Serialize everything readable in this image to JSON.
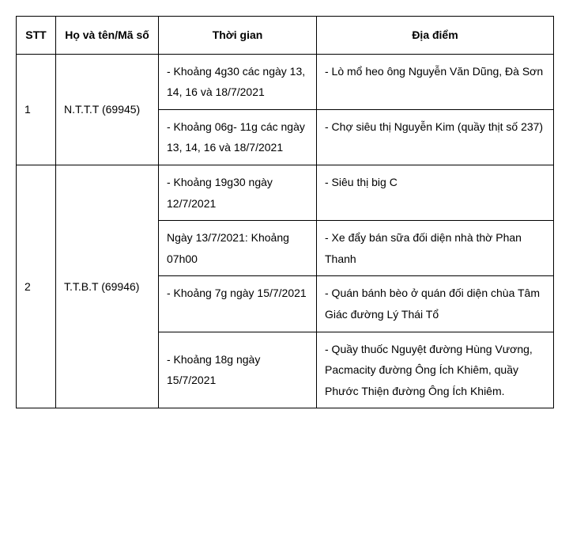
{
  "headers": {
    "stt": "STT",
    "name": "Họ và tên/Mã số",
    "time": "Thời gian",
    "place": "Địa điểm"
  },
  "rows": [
    {
      "stt": "1",
      "name": "N.T.T.T (69945)",
      "entries": [
        {
          "time": "- Khoảng 4g30 các ngày 13, 14, 16 và 18/7/2021",
          "place": "-  Lò mổ heo ông Nguyễn Văn Dũng, Đà Sơn"
        },
        {
          "time": "- Khoảng 06g- 11g các ngày 13, 14, 16 và 18/7/2021",
          "place": "- Chợ siêu thị Nguyễn Kim (quầy thịt số 237)"
        }
      ]
    },
    {
      "stt": "2",
      "name": "T.T.B.T (69946)",
      "entries": [
        {
          "time": "- Khoảng 19g30 ngày 12/7/2021",
          "place": "- Siêu thị big C"
        },
        {
          "time": "Ngày 13/7/2021: Khoảng 07h00",
          "place": "- Xe đẩy bán sữa đối diện nhà thờ Phan Thanh"
        },
        {
          "time": "- Khoảng 7g ngày 15/7/2021",
          "place": "- Quán bánh bèo ở quán đối diện chùa Tâm Giác đường Lý Thái Tổ"
        },
        {
          "time": "- Khoảng 18g ngày 15/7/2021",
          "place": "- Quầy thuốc Nguyệt đường Hùng Vương, Pacmacity đường Ông Ích Khiêm, quầy Phước Thiện  đường Ông Ích Khiêm."
        }
      ]
    }
  ]
}
